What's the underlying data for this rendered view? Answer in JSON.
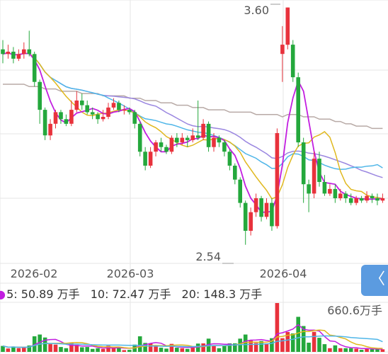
{
  "chart_data": {
    "type": "candlestick",
    "price_high_label": "3.60",
    "price_low_label": "2.54",
    "ylim": [
      2.5,
      3.62
    ],
    "x_ticks": [
      "2026-02",
      "2026-03",
      "2026-04"
    ],
    "ma_colors": {
      "ma5": "#c21ee0",
      "ma10": "#e0b81e",
      "ma20": "#4fb6e8",
      "ma30": "#9a86e0",
      "ma60": "#b8aaa6"
    },
    "up_color": "#e8323c",
    "down_color": "#24a83c",
    "candles": [
      [
        3.42,
        3.4,
        3.46,
        3.36
      ],
      [
        3.4,
        3.41,
        3.44,
        3.38
      ],
      [
        3.41,
        3.38,
        3.43,
        3.36
      ],
      [
        3.38,
        3.4,
        3.42,
        3.37
      ],
      [
        3.4,
        3.42,
        3.45,
        3.38
      ],
      [
        3.42,
        3.4,
        3.5,
        3.39
      ],
      [
        3.4,
        3.28,
        3.41,
        3.26
      ],
      [
        3.28,
        3.16,
        3.29,
        3.1
      ],
      [
        3.16,
        3.05,
        3.17,
        3.03
      ],
      [
        3.05,
        3.1,
        3.12,
        3.03
      ],
      [
        3.1,
        3.15,
        3.16,
        3.08
      ],
      [
        3.15,
        3.12,
        3.16,
        3.1
      ],
      [
        3.12,
        3.1,
        3.14,
        3.09
      ],
      [
        3.1,
        3.16,
        3.2,
        3.09
      ],
      [
        3.16,
        3.2,
        3.24,
        3.15
      ],
      [
        3.2,
        3.18,
        3.23,
        3.16
      ],
      [
        3.18,
        3.15,
        3.2,
        3.14
      ],
      [
        3.15,
        3.14,
        3.17,
        3.12
      ],
      [
        3.14,
        3.12,
        3.15,
        3.1
      ],
      [
        3.12,
        3.13,
        3.16,
        3.11
      ],
      [
        3.13,
        3.17,
        3.19,
        3.12
      ],
      [
        3.17,
        3.19,
        3.21,
        3.16
      ],
      [
        3.19,
        3.16,
        3.2,
        3.15
      ],
      [
        3.16,
        3.16,
        3.18,
        3.14
      ],
      [
        3.16,
        3.15,
        3.17,
        3.14
      ],
      [
        3.15,
        3.1,
        3.16,
        3.08
      ],
      [
        3.1,
        2.98,
        3.11,
        2.96
      ],
      [
        2.98,
        2.92,
        3.0,
        2.9
      ],
      [
        2.92,
        2.98,
        3.0,
        2.91
      ],
      [
        2.98,
        3.02,
        3.03,
        2.96
      ],
      [
        3.02,
        3.0,
        3.04,
        2.98
      ],
      [
        3.0,
        2.98,
        3.01,
        2.97
      ],
      [
        2.98,
        3.04,
        3.05,
        2.97
      ],
      [
        3.04,
        3.02,
        3.06,
        3.0
      ],
      [
        3.02,
        3.04,
        3.06,
        3.01
      ],
      [
        3.04,
        3.03,
        3.05,
        3.0
      ],
      [
        3.03,
        3.05,
        3.08,
        3.02
      ],
      [
        3.05,
        3.04,
        3.2,
        3.03
      ],
      [
        3.04,
        3.1,
        3.12,
        3.03
      ],
      [
        3.1,
        3.0,
        3.11,
        2.98
      ],
      [
        3.0,
        3.04,
        3.06,
        2.98
      ],
      [
        3.04,
        3.02,
        3.05,
        3.0
      ],
      [
        3.02,
        2.98,
        3.03,
        2.96
      ],
      [
        2.98,
        2.92,
        2.99,
        2.9
      ],
      [
        2.92,
        2.86,
        2.93,
        2.84
      ],
      [
        2.86,
        2.76,
        2.87,
        2.74
      ],
      [
        2.76,
        2.64,
        2.77,
        2.58
      ],
      [
        2.64,
        2.72,
        2.74,
        2.62
      ],
      [
        2.72,
        2.78,
        2.8,
        2.7
      ],
      [
        2.78,
        2.7,
        2.79,
        2.68
      ],
      [
        2.7,
        2.76,
        2.78,
        2.69
      ],
      [
        2.76,
        2.66,
        2.78,
        2.64
      ],
      [
        2.66,
        3.06,
        3.08,
        2.65
      ],
      [
        3.4,
        3.44,
        3.52,
        3.28
      ],
      [
        3.44,
        3.6,
        3.6,
        3.42
      ],
      [
        3.44,
        3.3,
        3.46,
        3.28
      ],
      [
        3.3,
        3.02,
        3.32,
        3.0
      ],
      [
        3.02,
        2.84,
        3.04,
        2.76
      ],
      [
        2.84,
        2.8,
        2.86,
        2.72
      ],
      [
        2.8,
        2.95,
        2.98,
        2.78
      ],
      [
        2.95,
        2.85,
        2.98,
        2.83
      ],
      [
        2.85,
        2.8,
        2.88,
        2.79
      ],
      [
        2.8,
        2.82,
        2.84,
        2.79
      ],
      [
        2.82,
        2.78,
        2.84,
        2.76
      ],
      [
        2.78,
        2.8,
        2.82,
        2.77
      ],
      [
        2.8,
        2.78,
        2.81,
        2.76
      ],
      [
        2.78,
        2.76,
        2.8,
        2.75
      ],
      [
        2.76,
        2.78,
        2.79,
        2.75
      ],
      [
        2.78,
        2.77,
        2.79,
        2.76
      ],
      [
        2.77,
        2.79,
        2.81,
        2.76
      ],
      [
        2.79,
        2.78,
        2.8,
        2.76
      ],
      [
        2.78,
        2.77,
        2.8,
        2.75
      ],
      [
        2.77,
        2.78,
        2.8,
        2.76
      ]
    ],
    "ma60": [
      3.27,
      3.27,
      3.27,
      3.27,
      3.27,
      3.26,
      3.26,
      3.26,
      3.25,
      3.25,
      3.25,
      3.24,
      3.24,
      3.24,
      3.24,
      3.23,
      3.23,
      3.23,
      3.23,
      3.22,
      3.22,
      3.22,
      3.22,
      3.22,
      3.21,
      3.21,
      3.21,
      3.2,
      3.2,
      3.2,
      3.19,
      3.19,
      3.19,
      3.18,
      3.18,
      3.18,
      3.17,
      3.17,
      3.17,
      3.16,
      3.16,
      3.16,
      3.16,
      3.15,
      3.15,
      3.15,
      3.15,
      3.15,
      3.14,
      3.14,
      3.14,
      3.14,
      3.14,
      3.13,
      3.14,
      3.14,
      3.14,
      3.13,
      3.13,
      3.13,
      3.12,
      3.12,
      3.12,
      3.11,
      3.11,
      3.1,
      3.1,
      3.09,
      3.09,
      3.09,
      3.08,
      3.08,
      3.08
    ],
    "volume_legend": {
      "ma5_label": "5: 50.89 万手",
      "ma10_label": "10: 72.47 万手",
      "ma20_label": "20: 148.3 万手",
      "peak_label": "660.6万手"
    }
  },
  "ui": {
    "side_button_icon": "chevron-left-icon",
    "side_button_glyph": "〈"
  }
}
